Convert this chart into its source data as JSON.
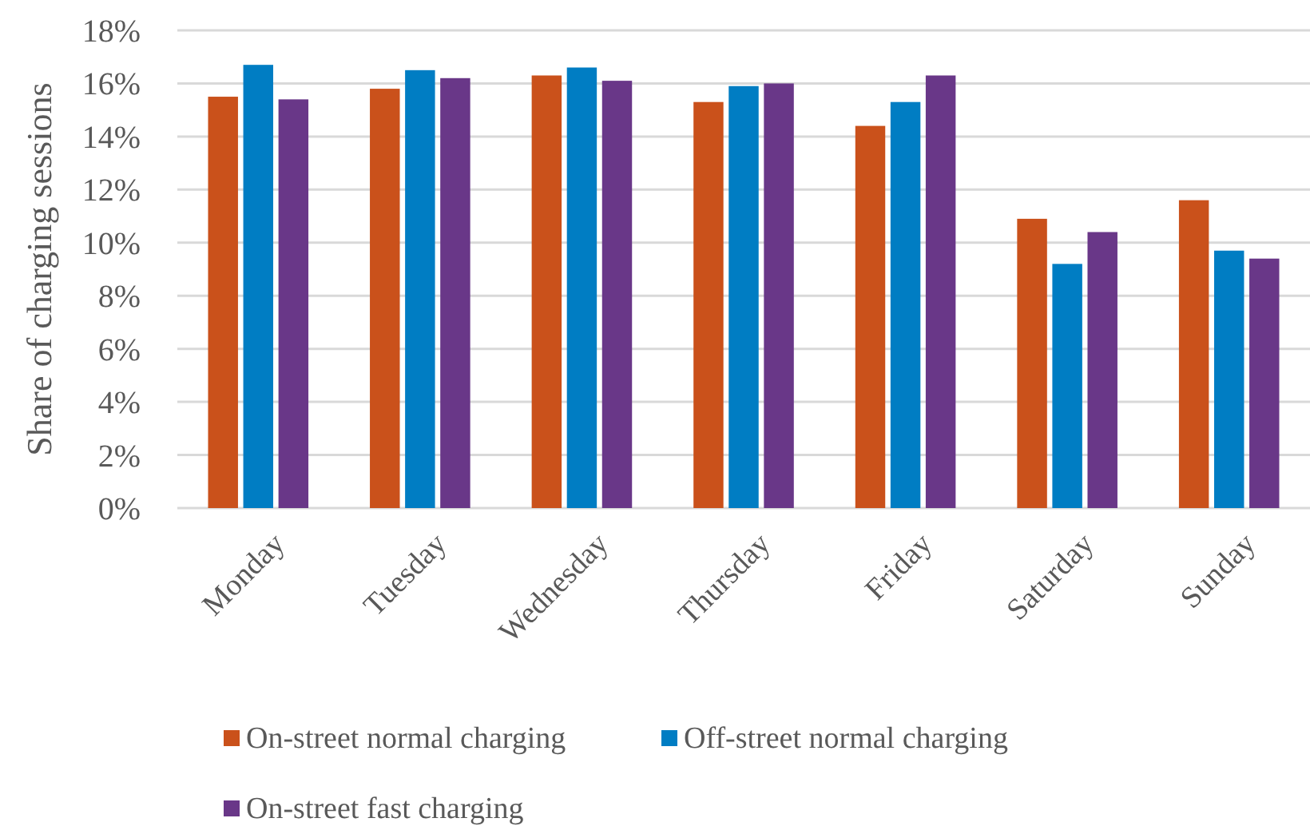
{
  "chart_data": {
    "type": "bar",
    "ylabel": "Share of charging sessions",
    "categories": [
      "Monday",
      "Tuesday",
      "Wednesday",
      "Thursday",
      "Friday",
      "Saturday",
      "Sunday"
    ],
    "series": [
      {
        "name": "On-street normal charging",
        "color": "#ca511b",
        "values": [
          15.5,
          15.8,
          16.3,
          15.3,
          14.4,
          10.9,
          11.6
        ]
      },
      {
        "name": "Off-street normal charging",
        "color": "#007dc3",
        "values": [
          16.7,
          16.5,
          16.6,
          15.9,
          15.3,
          9.2,
          9.7
        ]
      },
      {
        "name": "On-street fast charging",
        "color": "#693788",
        "values": [
          15.4,
          16.2,
          16.1,
          16.0,
          16.3,
          10.4,
          9.4
        ]
      }
    ],
    "ylim": [
      0,
      18
    ],
    "yticks": [
      {
        "value": 0,
        "label": "0%"
      },
      {
        "value": 2,
        "label": "2%"
      },
      {
        "value": 4,
        "label": "4%"
      },
      {
        "value": 6,
        "label": "6%"
      },
      {
        "value": 8,
        "label": "8%"
      },
      {
        "value": 10,
        "label": "10%"
      },
      {
        "value": 12,
        "label": "12%"
      },
      {
        "value": 14,
        "label": "14%"
      },
      {
        "value": 16,
        "label": "16%"
      },
      {
        "value": 18,
        "label": "18%"
      }
    ],
    "grid": "y",
    "legend": "bottom"
  }
}
